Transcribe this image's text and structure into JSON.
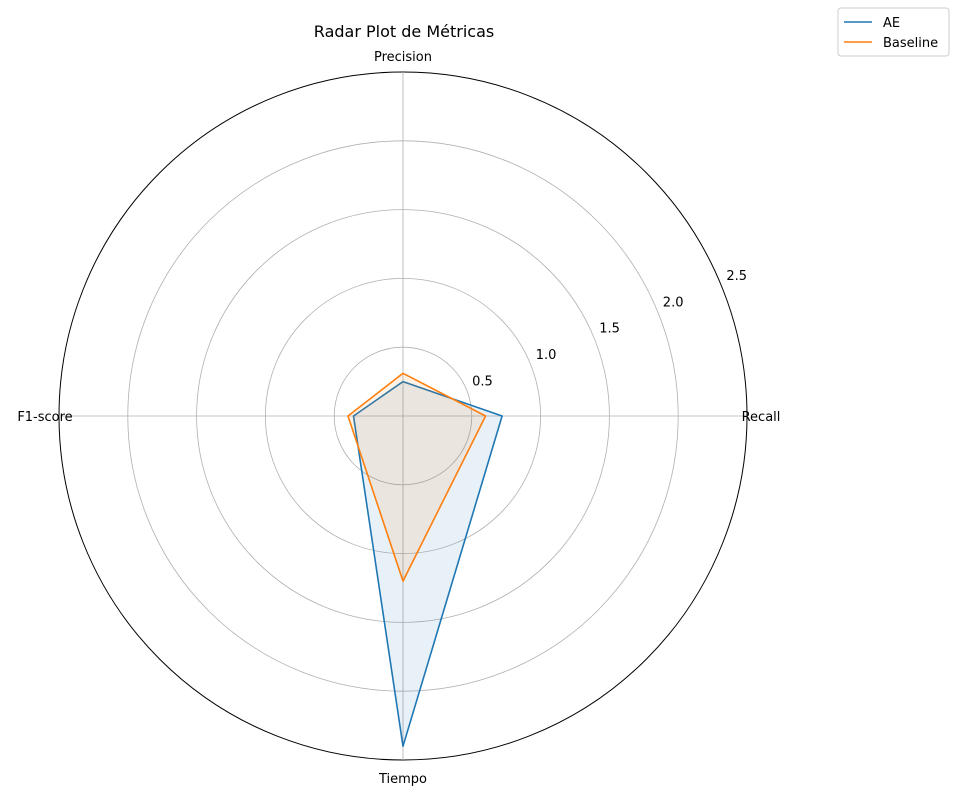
{
  "chart_data": {
    "type": "radar",
    "title": "Radar Plot de Métricas",
    "axes": [
      "Precision",
      "Recall",
      "Tiempo",
      "F1-score"
    ],
    "rlim": [
      0,
      2.5
    ],
    "rticks": [
      0.5,
      1.0,
      1.5,
      2.0,
      2.5
    ],
    "rtick_labels": [
      "0.5",
      "1.0",
      "1.5",
      "2.0",
      "2.5"
    ],
    "grid": true,
    "legend_position": "top-right",
    "series": [
      {
        "name": "AE",
        "values": [
          0.25,
          0.72,
          2.4,
          0.36
        ],
        "color": "#1f77b4"
      },
      {
        "name": "Baseline",
        "values": [
          0.31,
          0.6,
          1.2,
          0.4
        ],
        "color": "#ff7f0e"
      }
    ]
  }
}
